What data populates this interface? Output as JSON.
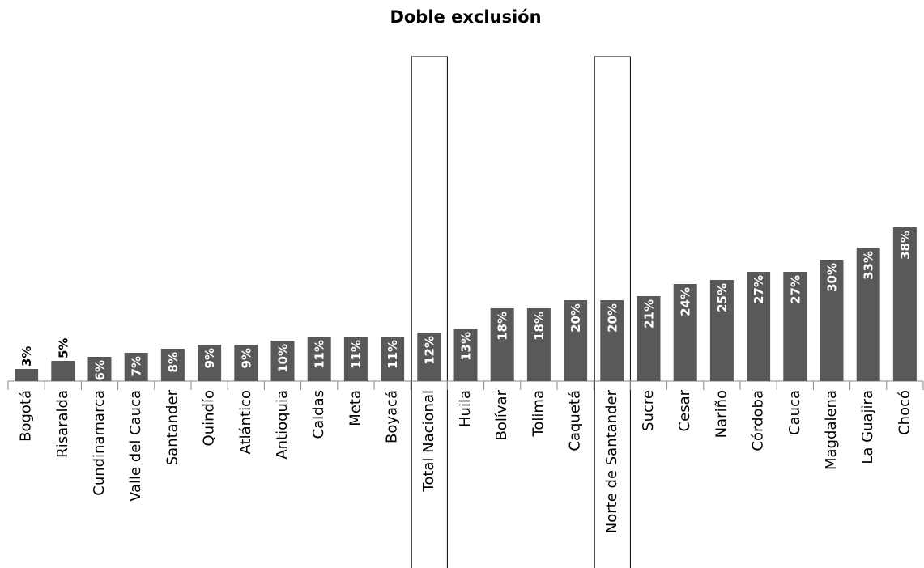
{
  "chart_data": {
    "type": "bar",
    "title": "Doble exclusión",
    "categories": [
      "Bogotá",
      "Risaralda",
      "Cundinamarca",
      "Valle del Cauca",
      "Santander",
      "Quindío",
      "Atlántico",
      "Antioquia",
      "Caldas",
      "Meta",
      "Boyacá",
      "Total Nacional",
      "Huila",
      "Bolívar",
      "Tolima",
      "Caquetá",
      "Norte de Santander",
      "Sucre",
      "Cesar",
      "Nariño",
      "Córdoba",
      "Cauca",
      "Magdalena",
      "La Guajira",
      "Chocó"
    ],
    "values": [
      3,
      5,
      6,
      7,
      8,
      9,
      9,
      10,
      11,
      11,
      11,
      12,
      13,
      18,
      18,
      20,
      20,
      21,
      24,
      25,
      27,
      27,
      30,
      33,
      38
    ],
    "value_labels": [
      "3%",
      "5%",
      "6%",
      "7%",
      "8%",
      "9%",
      "9%",
      "10%",
      "11%",
      "11%",
      "11%",
      "12%",
      "13%",
      "18%",
      "18%",
      "20%",
      "20%",
      "21%",
      "24%",
      "25%",
      "27%",
      "27%",
      "30%",
      "33%",
      "38%"
    ],
    "color": "#595959",
    "highlight": [
      "Total Nacional",
      "Norte de Santander"
    ]
  }
}
